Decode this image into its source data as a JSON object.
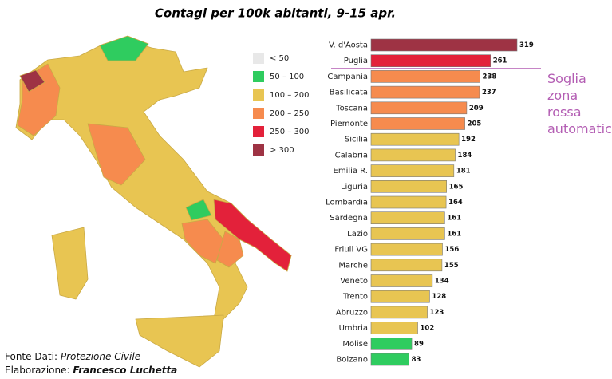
{
  "chart_data": {
    "type": "bar",
    "orientation": "horizontal",
    "title": "Contagi per 100k abitanti, 9-15 apr.",
    "categories": [
      "V. d'Aosta",
      "Puglia",
      "Campania",
      "Basilicata",
      "Toscana",
      "Piemonte",
      "Sicilia",
      "Calabria",
      "Emilia R.",
      "Liguria",
      "Lombardia",
      "Sardegna",
      "Lazio",
      "Friuli VG",
      "Marche",
      "Veneto",
      "Trento",
      "Abruzzo",
      "Umbria",
      "Molise",
      "Bolzano"
    ],
    "values": [
      319,
      261,
      238,
      237,
      209,
      205,
      192,
      184,
      181,
      165,
      164,
      161,
      161,
      156,
      155,
      134,
      128,
      123,
      102,
      89,
      83
    ],
    "colors": [
      "#9e3344",
      "#e3213a",
      "#f68b4e",
      "#f68b4e",
      "#f68b4e",
      "#f68b4e",
      "#e8c552",
      "#e8c552",
      "#e8c552",
      "#e8c552",
      "#e8c552",
      "#e8c552",
      "#e8c552",
      "#e8c552",
      "#e8c552",
      "#e8c552",
      "#e8c552",
      "#e8c552",
      "#e8c552",
      "#2fcc5f",
      "#2fcc5f"
    ],
    "threshold": 250,
    "threshold_label": "Soglia zona rossa automatica",
    "threshold_color": "#b35db3",
    "legend": [
      {
        "label": "< 50",
        "color": "#e8e8e8"
      },
      {
        "label": "50 – 100",
        "color": "#2fcc5f"
      },
      {
        "label": "100 – 200",
        "color": "#e8c552"
      },
      {
        "label": "200 – 250",
        "color": "#f68b4e"
      },
      {
        "label": "250 – 300",
        "color": "#e3213a"
      },
      {
        "label": "> 300",
        "color": "#9e3344"
      }
    ],
    "source_label": "Fonte Dati:",
    "source": "Protezione Civile",
    "credit_label": "Elaborazione:",
    "credit": "Francesco Luchetta"
  }
}
